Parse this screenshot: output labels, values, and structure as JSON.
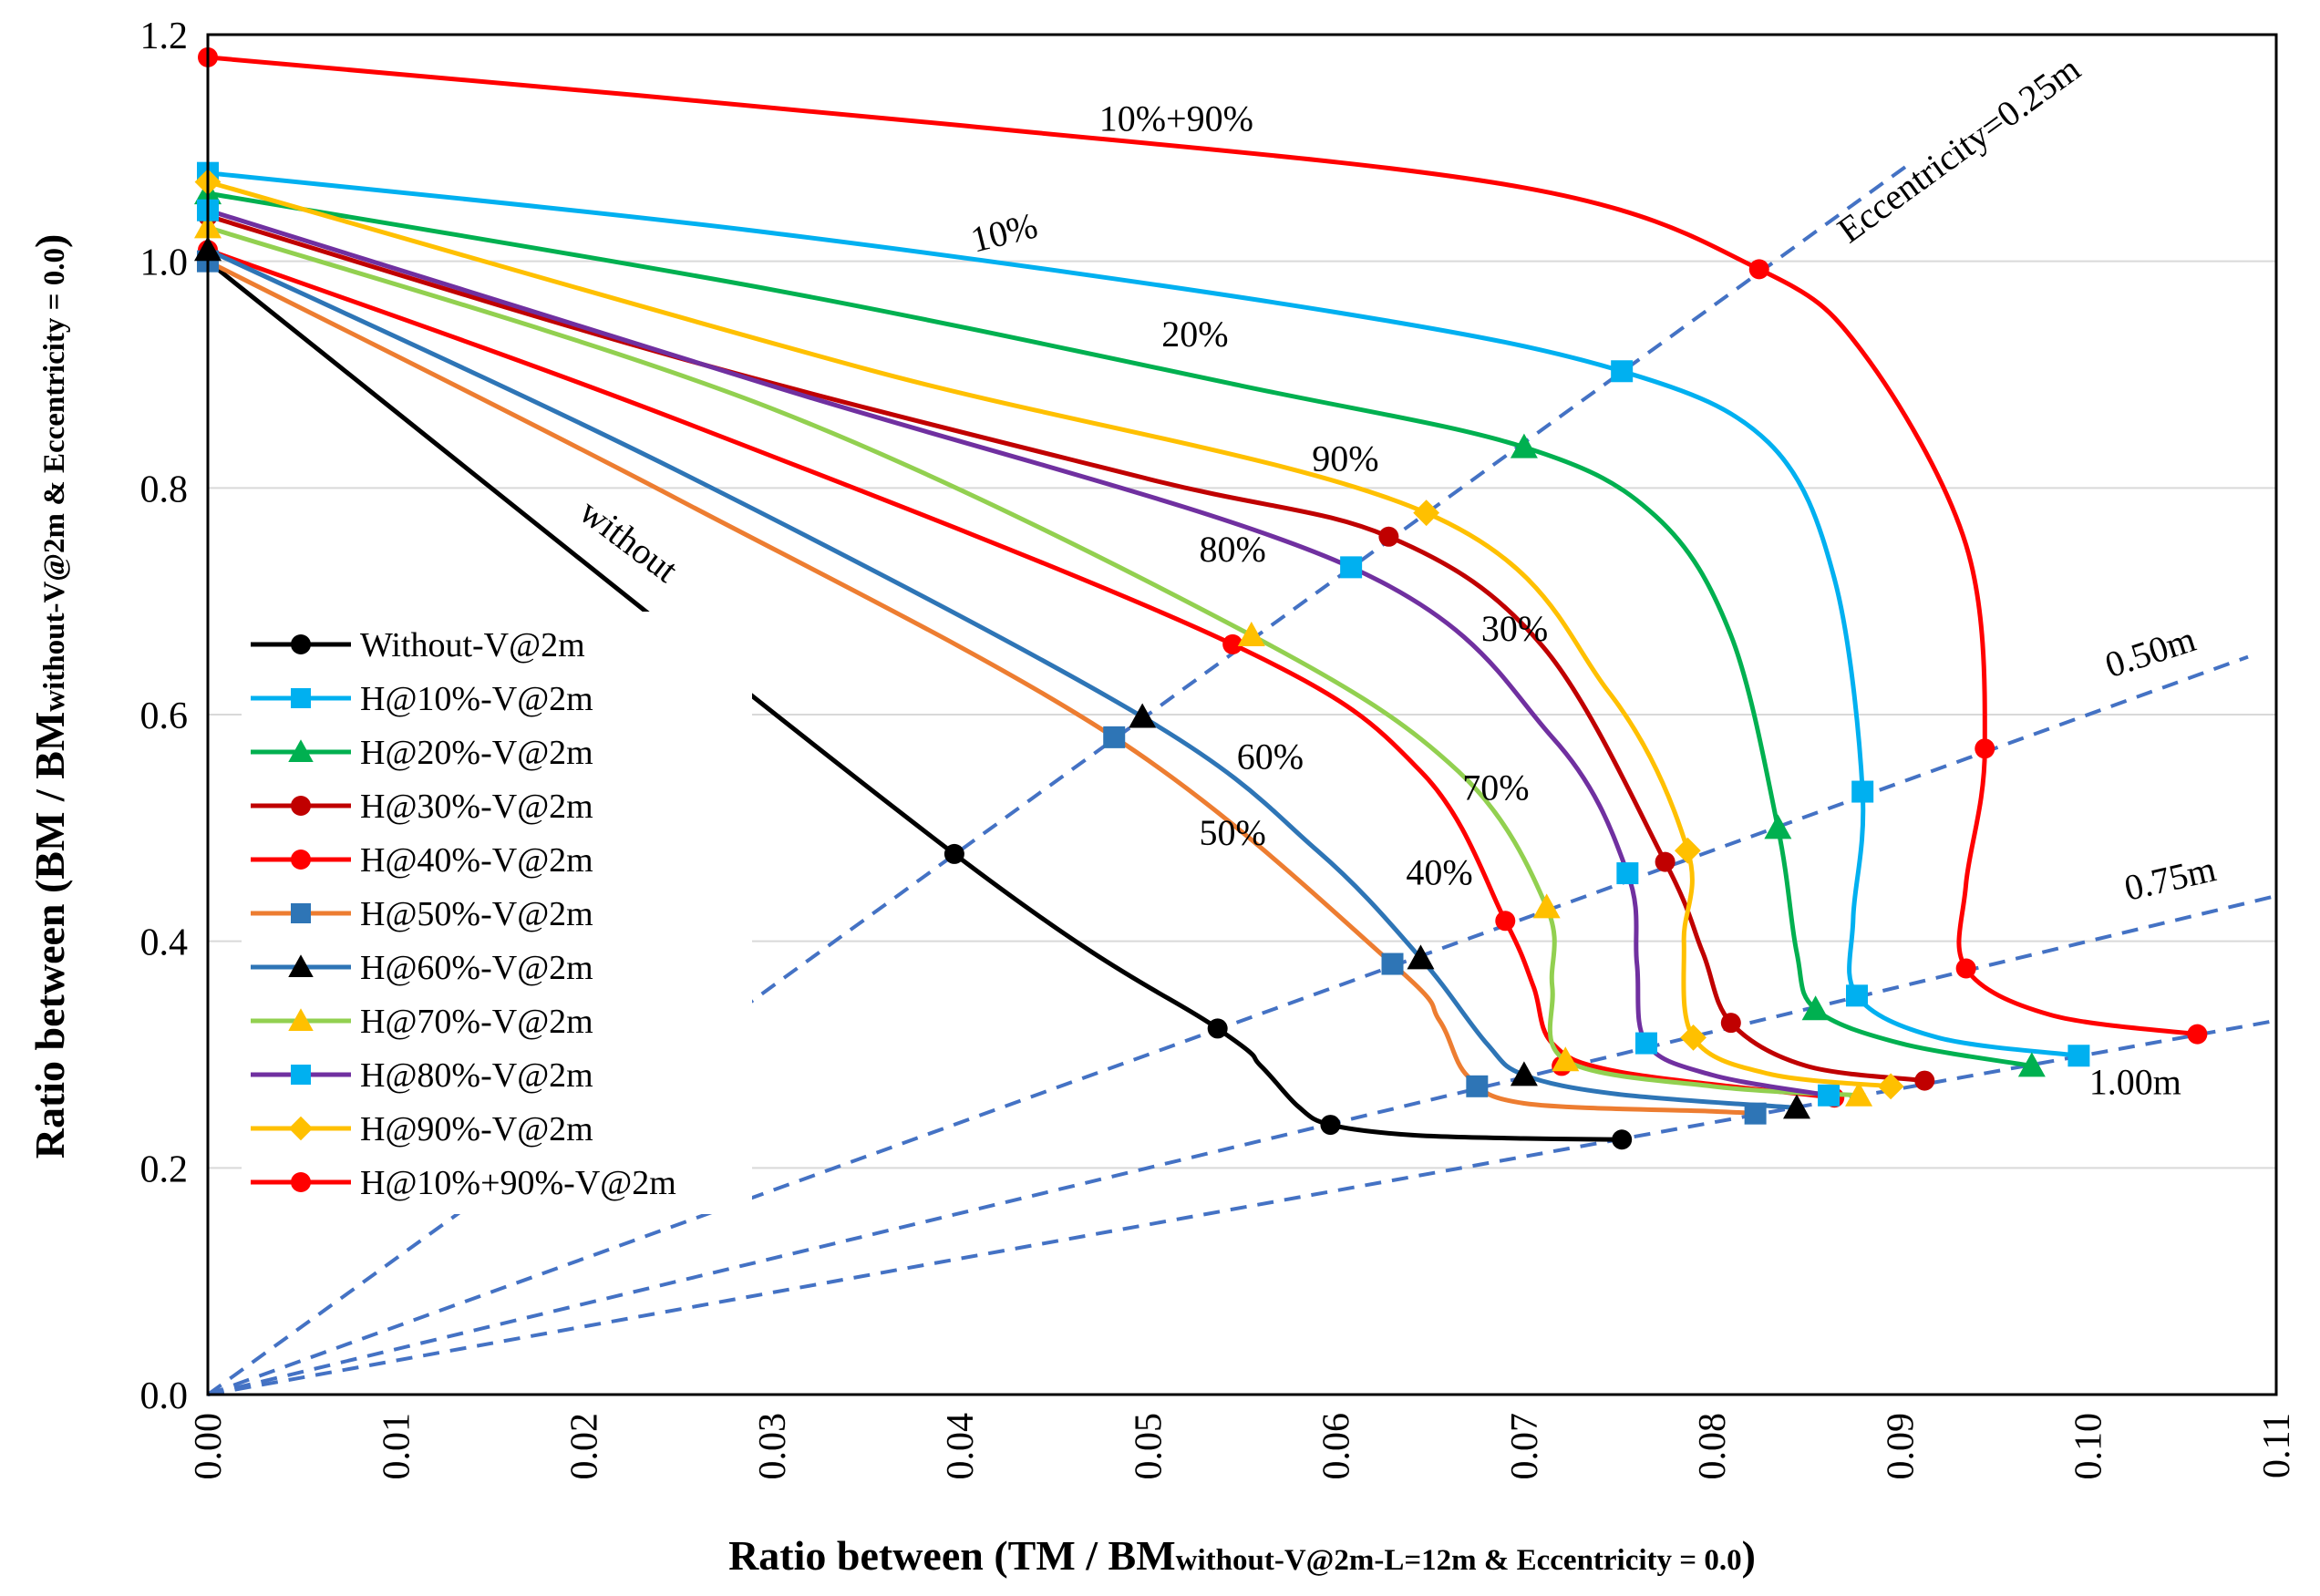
{
  "chart_data": {
    "type": "line",
    "title": "",
    "xlabel": "Ratio between (TM / BM",
    "xlabel_sub": "without-V@2m-L=12m & Eccentricity = 0.0",
    "xlabel_close": ")",
    "ylabel": "Ratio between (BM / BM",
    "ylabel_sub": "without-V@2m & Eccentricity = 0.0",
    "ylabel_close": ")",
    "xlim": [
      0,
      0.11
    ],
    "ylim": [
      0,
      1.2
    ],
    "xticks": [
      "0.00",
      "0.01",
      "0.02",
      "0.03",
      "0.04",
      "0.05",
      "0.06",
      "0.07",
      "0.08",
      "0.09",
      "0.10",
      "0.11"
    ],
    "yticks": [
      "0.0",
      "0.2",
      "0.4",
      "0.6",
      "0.8",
      "1.0",
      "1.2"
    ],
    "grid": "horizontal",
    "legend_position": "left-middle",
    "series": [
      {
        "name": "Without-V@2m",
        "color": "#000000",
        "marker": "circle",
        "points": [
          [
            0,
            1.0
          ],
          [
            0.0397,
            0.477
          ],
          [
            0.0537,
            0.323
          ],
          [
            0.056,
            0.29
          ],
          [
            0.058,
            0.254
          ],
          [
            0.0597,
            0.238
          ],
          [
            0.064,
            0.229
          ],
          [
            0.07,
            0.226
          ],
          [
            0.0752,
            0.225
          ]
        ],
        "markers": [
          [
            0,
            1.0
          ],
          [
            0.0397,
            0.477
          ],
          [
            0.0537,
            0.323
          ],
          [
            0.0597,
            0.238
          ],
          [
            0.0752,
            0.225
          ]
        ]
      },
      {
        "name": "H@10%-V@2m",
        "color": "#00B0F0",
        "marker": "square",
        "points": [
          [
            0,
            1.078
          ],
          [
            0.03,
            1.025
          ],
          [
            0.06,
            0.955
          ],
          [
            0.0752,
            0.903
          ],
          [
            0.083,
            0.84
          ],
          [
            0.0865,
            0.72
          ],
          [
            0.088,
            0.532
          ],
          [
            0.0875,
            0.42
          ],
          [
            0.0877,
            0.352
          ],
          [
            0.092,
            0.315
          ],
          [
            0.0995,
            0.299
          ]
        ],
        "markers": [
          [
            0,
            1.078
          ],
          [
            0.0752,
            0.903
          ],
          [
            0.088,
            0.532
          ],
          [
            0.0877,
            0.352
          ],
          [
            0.0995,
            0.299
          ]
        ]
      },
      {
        "name": "H@20%-V@2m",
        "color": "#00B050",
        "marker": "triangle",
        "points": [
          [
            0,
            1.06
          ],
          [
            0.03,
            0.975
          ],
          [
            0.055,
            0.89
          ],
          [
            0.07,
            0.836
          ],
          [
            0.077,
            0.775
          ],
          [
            0.081,
            0.67
          ],
          [
            0.0835,
            0.5
          ],
          [
            0.0845,
            0.39
          ],
          [
            0.0855,
            0.34
          ],
          [
            0.09,
            0.31
          ],
          [
            0.097,
            0.29
          ]
        ],
        "markers": [
          [
            0,
            1.06
          ],
          [
            0.07,
            0.836
          ],
          [
            0.0835,
            0.5
          ],
          [
            0.0855,
            0.34
          ],
          [
            0.097,
            0.29
          ]
        ]
      },
      {
        "name": "H@30%-V@2m",
        "color": "#C00000",
        "marker": "circle",
        "points": [
          [
            0,
            1.04
          ],
          [
            0.025,
            0.915
          ],
          [
            0.05,
            0.808
          ],
          [
            0.0628,
            0.757
          ],
          [
            0.071,
            0.66
          ],
          [
            0.0775,
            0.47
          ],
          [
            0.0795,
            0.39
          ],
          [
            0.081,
            0.328
          ],
          [
            0.085,
            0.29
          ],
          [
            0.0913,
            0.277
          ]
        ],
        "markers": [
          [
            0,
            1.04
          ],
          [
            0.0628,
            0.757
          ],
          [
            0.0775,
            0.47
          ],
          [
            0.081,
            0.328
          ],
          [
            0.0913,
            0.277
          ]
        ]
      },
      {
        "name": "H@40%-V@2m",
        "color": "#FF0000",
        "marker": "circle",
        "points": [
          [
            0,
            1.01
          ],
          [
            0.025,
            0.86
          ],
          [
            0.0545,
            0.662
          ],
          [
            0.0645,
            0.55
          ],
          [
            0.069,
            0.418
          ],
          [
            0.0705,
            0.36
          ],
          [
            0.0715,
            0.31
          ],
          [
            0.075,
            0.285
          ],
          [
            0.0865,
            0.262
          ]
        ],
        "markers": [
          [
            0,
            1.01
          ],
          [
            0.0545,
            0.662
          ],
          [
            0.069,
            0.418
          ],
          [
            0.072,
            0.29
          ],
          [
            0.0865,
            0.262
          ]
        ]
      },
      {
        "name": "H@50%-V@2m",
        "color": "#ED7D31",
        "marker": "square",
        "points": [
          [
            0,
            1.0
          ],
          [
            0.025,
            0.79
          ],
          [
            0.0482,
            0.58
          ],
          [
            0.063,
            0.38
          ],
          [
            0.0655,
            0.33
          ],
          [
            0.067,
            0.281
          ],
          [
            0.07,
            0.257
          ],
          [
            0.08,
            0.25
          ],
          [
            0.0823,
            0.248
          ]
        ],
        "markers": [
          [
            0,
            1.0
          ],
          [
            0.0482,
            0.58
          ],
          [
            0.063,
            0.38
          ],
          [
            0.0675,
            0.272
          ],
          [
            0.0823,
            0.248
          ]
        ]
      },
      {
        "name": "H@60%-V@2m",
        "color": "#2E75B6",
        "marker": "triangle",
        "points": [
          [
            0,
            1.01
          ],
          [
            0.025,
            0.815
          ],
          [
            0.0497,
            0.598
          ],
          [
            0.059,
            0.48
          ],
          [
            0.0645,
            0.385
          ],
          [
            0.068,
            0.31
          ],
          [
            0.07,
            0.282
          ],
          [
            0.075,
            0.265
          ],
          [
            0.0845,
            0.253
          ]
        ],
        "markers": [
          [
            0,
            1.01
          ],
          [
            0.0497,
            0.598
          ],
          [
            0.0645,
            0.385
          ],
          [
            0.07,
            0.282
          ],
          [
            0.0845,
            0.253
          ]
        ]
      },
      {
        "name": "H@70%-V@2m",
        "color": "#92D050",
        "marker": "triangle",
        "points": [
          [
            0,
            1.03
          ],
          [
            0.03,
            0.87
          ],
          [
            0.0555,
            0.67
          ],
          [
            0.0665,
            0.55
          ],
          [
            0.0712,
            0.43
          ],
          [
            0.0715,
            0.36
          ],
          [
            0.0722,
            0.295
          ],
          [
            0.08,
            0.272
          ],
          [
            0.0878,
            0.264
          ]
        ],
        "markers": [
          [
            0,
            1.03
          ],
          [
            0.0555,
            0.67
          ],
          [
            0.0712,
            0.43
          ],
          [
            0.0722,
            0.295
          ],
          [
            0.0878,
            0.264
          ]
        ]
      },
      {
        "name": "H@80%-V@2m",
        "color": "#7030A0",
        "marker": "square",
        "points": [
          [
            0,
            1.045
          ],
          [
            0.03,
            0.89
          ],
          [
            0.0608,
            0.73
          ],
          [
            0.0715,
            0.58
          ],
          [
            0.0755,
            0.46
          ],
          [
            0.076,
            0.38
          ],
          [
            0.0765,
            0.31
          ],
          [
            0.08,
            0.282
          ],
          [
            0.0862,
            0.264
          ]
        ],
        "markers": [
          [
            0,
            1.045
          ],
          [
            0.0608,
            0.73
          ],
          [
            0.0755,
            0.46
          ],
          [
            0.0765,
            0.31
          ],
          [
            0.0862,
            0.264
          ]
        ]
      },
      {
        "name": "H@90%-V@2m",
        "color": "#FFC000",
        "marker": "diamond",
        "points": [
          [
            0,
            1.07
          ],
          [
            0.035,
            0.905
          ],
          [
            0.0648,
            0.778
          ],
          [
            0.0745,
            0.62
          ],
          [
            0.0787,
            0.48
          ],
          [
            0.0785,
            0.4
          ],
          [
            0.079,
            0.315
          ],
          [
            0.083,
            0.283
          ],
          [
            0.0895,
            0.272
          ]
        ],
        "markers": [
          [
            0,
            1.07
          ],
          [
            0.0648,
            0.778
          ],
          [
            0.0787,
            0.48
          ],
          [
            0.079,
            0.315
          ],
          [
            0.0895,
            0.272
          ]
        ]
      },
      {
        "name": "H@10%+90%-V@2m",
        "color": "#FF0000",
        "marker": "circle",
        "points": [
          [
            0,
            1.18
          ],
          [
            0.04,
            1.12
          ],
          [
            0.07,
            1.065
          ],
          [
            0.0825,
            0.993
          ],
          [
            0.088,
            0.92
          ],
          [
            0.0935,
            0.75
          ],
          [
            0.0945,
            0.57
          ],
          [
            0.0935,
            0.45
          ],
          [
            0.0935,
            0.376
          ],
          [
            0.098,
            0.335
          ],
          [
            0.1058,
            0.318
          ]
        ],
        "markers": [
          [
            0,
            1.18
          ],
          [
            0.0825,
            0.993
          ],
          [
            0.0945,
            0.57
          ],
          [
            0.0935,
            0.376
          ],
          [
            0.1058,
            0.318
          ]
        ]
      }
    ],
    "eccentricity_lines": [
      {
        "label": "Eccentricity=0.25m",
        "slope": 12.0,
        "x_end": 0.0905
      },
      {
        "label": "0.50m",
        "slope": 6.0,
        "x_end": 0.1085
      },
      {
        "label": "0.75m",
        "slope": 4.0,
        "x_end": 0.11
      },
      {
        "label": "1.00m",
        "slope": 3.0,
        "x_end": 0.11
      }
    ],
    "annotations": [
      {
        "text": "10%+90%",
        "x": 0.0515,
        "y": 1.115,
        "rotate": 0
      },
      {
        "text": "10%",
        "x": 0.0425,
        "y": 1.015,
        "rotate": -14
      },
      {
        "text": "20%",
        "x": 0.0525,
        "y": 0.925,
        "rotate": 0
      },
      {
        "text": "90%",
        "x": 0.0605,
        "y": 0.815,
        "rotate": 0
      },
      {
        "text": "80%",
        "x": 0.0545,
        "y": 0.735,
        "rotate": 0
      },
      {
        "text": "without",
        "x": 0.022,
        "y": 0.745,
        "rotate": 37
      },
      {
        "text": "30%",
        "x": 0.0695,
        "y": 0.665,
        "rotate": 0
      },
      {
        "text": "70%",
        "x": 0.0685,
        "y": 0.525,
        "rotate": 0
      },
      {
        "text": "60%",
        "x": 0.0565,
        "y": 0.552,
        "rotate": 0
      },
      {
        "text": "50%",
        "x": 0.0545,
        "y": 0.485,
        "rotate": 0
      },
      {
        "text": "40%",
        "x": 0.0655,
        "y": 0.45,
        "rotate": 0
      },
      {
        "text": "Eccentricity=0.25m",
        "x": 0.0935,
        "y": 1.09,
        "rotate": -36
      },
      {
        "text": "0.50m",
        "x": 0.1035,
        "y": 0.645,
        "rotate": -18
      },
      {
        "text": "0.75m",
        "x": 0.1045,
        "y": 0.445,
        "rotate": -13
      },
      {
        "text": "1.00m",
        "x": 0.1025,
        "y": 0.265,
        "rotate": 0
      }
    ]
  }
}
